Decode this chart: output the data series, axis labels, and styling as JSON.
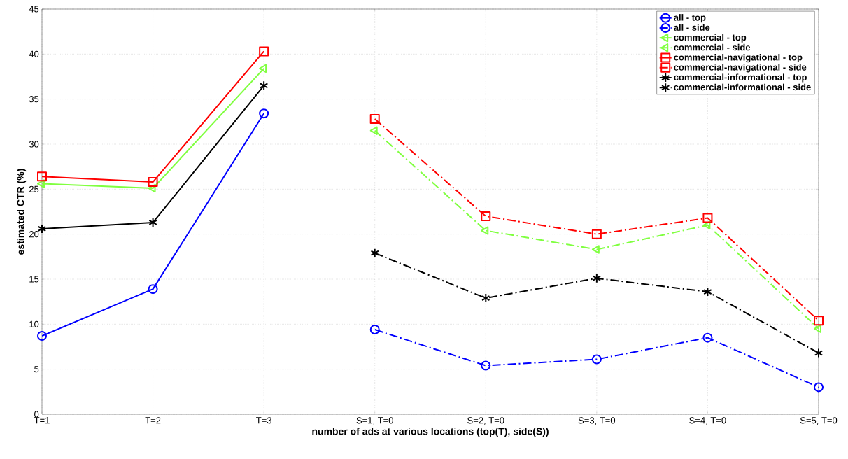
{
  "chart_data": {
    "type": "line",
    "xlabel": "number of ads at various locations  (top(T), side(S))",
    "ylabel": "estimated CTR (%)",
    "categories": [
      "T=1",
      "T=2",
      "T=3",
      "S=1, T=0",
      "S=2, T=0",
      "S=3, T=0",
      "S=4, T=0",
      "S=5, T=0"
    ],
    "ylim": [
      0,
      45
    ],
    "yticks": [
      0,
      5,
      10,
      15,
      20,
      25,
      30,
      35,
      40,
      45
    ],
    "grid": true,
    "legend": "top right",
    "series": [
      {
        "name": "all - top",
        "color": "#0000ff",
        "marker": "circle",
        "line_style": "solid",
        "values": [
          8.7,
          13.9,
          33.4,
          null,
          null,
          null,
          null,
          null
        ]
      },
      {
        "name": "all - side",
        "color": "#0000ff",
        "marker": "circle",
        "line_style": "dashdot",
        "values": [
          null,
          null,
          null,
          9.4,
          5.4,
          6.1,
          8.5,
          3.0
        ]
      },
      {
        "name": "commercial - top",
        "color": "#80ff40",
        "marker": "triangle",
        "line_style": "solid",
        "values": [
          25.6,
          25.1,
          38.4,
          null,
          null,
          null,
          null,
          null
        ]
      },
      {
        "name": "commercial - side",
        "color": "#80ff40",
        "marker": "triangle",
        "line_style": "dashdot",
        "values": [
          null,
          null,
          null,
          31.5,
          20.4,
          18.3,
          21.0,
          9.5
        ]
      },
      {
        "name": "commercial-navigational - top",
        "color": "#ff0000",
        "marker": "square",
        "line_style": "solid",
        "values": [
          26.4,
          25.8,
          40.3,
          null,
          null,
          null,
          null,
          null
        ]
      },
      {
        "name": "commercial-navigational - side",
        "color": "#ff0000",
        "marker": "square",
        "line_style": "dashdot",
        "values": [
          null,
          null,
          null,
          32.8,
          22.0,
          20.0,
          21.8,
          10.4
        ]
      },
      {
        "name": "commercial-informational - top",
        "color": "#000000",
        "marker": "cross",
        "line_style": "solid",
        "values": [
          20.6,
          21.3,
          36.5,
          null,
          null,
          null,
          null,
          null
        ]
      },
      {
        "name": "commercial-informational - side",
        "color": "#000000",
        "marker": "cross",
        "line_style": "dashdot",
        "values": [
          null,
          null,
          null,
          17.9,
          12.9,
          15.1,
          13.6,
          6.8
        ]
      }
    ]
  }
}
